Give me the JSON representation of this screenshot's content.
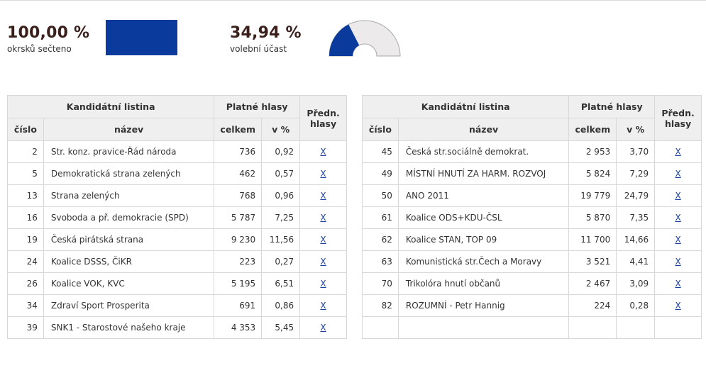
{
  "summary": {
    "counted_value": "100,00 %",
    "counted_label": "okrsků sečteno",
    "counted_fraction": 1.0,
    "turnout_value": "34,94 %",
    "turnout_label": "volební účast",
    "turnout_fraction": 0.3494
  },
  "colors": {
    "accent": "#0a3b9c",
    "track": "#eceaea",
    "value_text": "#3a1f1b"
  },
  "table": {
    "headers": {
      "group_list": "Kandidátní listina",
      "group_votes": "Platné hlasy",
      "pref": "Předn. hlasy",
      "col_number": "číslo",
      "col_name": "název",
      "col_total": "celkem",
      "col_pct": "v %"
    },
    "link_text": "X",
    "left_rows": [
      {
        "num": "2",
        "name": "Str. konz. pravice-Řád národa",
        "total": "736",
        "pct": "0,92"
      },
      {
        "num": "5",
        "name": "Demokratická strana zelených",
        "total": "462",
        "pct": "0,57"
      },
      {
        "num": "13",
        "name": "Strana zelených",
        "total": "768",
        "pct": "0,96"
      },
      {
        "num": "16",
        "name": "Svoboda a př. demokracie (SPD)",
        "total": "5 787",
        "pct": "7,25"
      },
      {
        "num": "19",
        "name": "Česká pirátská strana",
        "total": "9 230",
        "pct": "11,56"
      },
      {
        "num": "24",
        "name": "Koalice DSSS, ČiKR",
        "total": "223",
        "pct": "0,27"
      },
      {
        "num": "26",
        "name": "Koalice VOK, KVC",
        "total": "5 195",
        "pct": "6,51"
      },
      {
        "num": "34",
        "name": "Zdraví Sport Prosperita",
        "total": "691",
        "pct": "0,86"
      },
      {
        "num": "39",
        "name": "SNK1 - Starostové našeho kraje",
        "total": "4 353",
        "pct": "5,45"
      }
    ],
    "right_rows": [
      {
        "num": "45",
        "name": "Česká str.sociálně demokrat.",
        "total": "2 953",
        "pct": "3,70"
      },
      {
        "num": "49",
        "name": "MÍSTNÍ HNUTÍ ZA HARM. ROZVOJ",
        "total": "5 824",
        "pct": "7,29"
      },
      {
        "num": "50",
        "name": "ANO 2011",
        "total": "19 779",
        "pct": "24,79"
      },
      {
        "num": "61",
        "name": "Koalice ODS+KDU-ČSL",
        "total": "5 870",
        "pct": "7,35"
      },
      {
        "num": "62",
        "name": "Koalice STAN, TOP 09",
        "total": "11 700",
        "pct": "14,66"
      },
      {
        "num": "63",
        "name": "Komunistická str.Čech a Moravy",
        "total": "3 521",
        "pct": "4,41"
      },
      {
        "num": "70",
        "name": "Trikolóra hnutí občanů",
        "total": "2 467",
        "pct": "3,09"
      },
      {
        "num": "82",
        "name": "ROZUMNÍ - Petr Hannig",
        "total": "224",
        "pct": "0,28"
      }
    ]
  }
}
